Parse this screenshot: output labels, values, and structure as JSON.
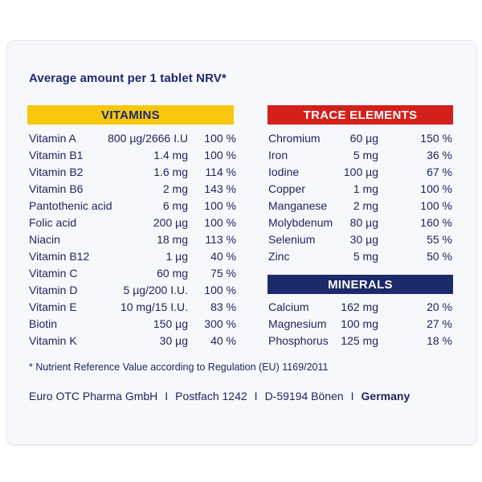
{
  "heading": "Average amount per 1 tablet NRV*",
  "vitamins": {
    "title": "VITAMINS",
    "rows": [
      {
        "name": "Vitamin A",
        "amount": "800 µg/2666 I.U",
        "nrv": "100 %"
      },
      {
        "name": "Vitamin B1",
        "amount": "1.4 mg",
        "nrv": "100 %"
      },
      {
        "name": "Vitamin B2",
        "amount": "1.6 mg",
        "nrv": "114 %"
      },
      {
        "name": "Vitamin B6",
        "amount": "2 mg",
        "nrv": "143 %"
      },
      {
        "name": "Pantothenic acid",
        "amount": "6 mg",
        "nrv": "100 %"
      },
      {
        "name": "Folic acid",
        "amount": "200 µg",
        "nrv": "100 %"
      },
      {
        "name": "Niacin",
        "amount": "18 mg",
        "nrv": "113 %"
      },
      {
        "name": "Vitamin B12",
        "amount": "1 µg",
        "nrv": "40 %"
      },
      {
        "name": "Vitamin C",
        "amount": "60 mg",
        "nrv": "75 %"
      },
      {
        "name": "Vitamin D",
        "amount": "5 µg/200 I.U.",
        "nrv": "100 %"
      },
      {
        "name": "Vitamin E",
        "amount": "10 mg/15 I.U.",
        "nrv": "83 %"
      },
      {
        "name": "Biotin",
        "amount": "150 µg",
        "nrv": "300 %"
      },
      {
        "name": "Vitamin K",
        "amount": "30 µg",
        "nrv": "40 %"
      }
    ]
  },
  "trace_elements": {
    "title": "TRACE ELEMENTS",
    "rows": [
      {
        "name": "Chromium",
        "amount": "60 µg",
        "nrv": "150 %"
      },
      {
        "name": "Iron",
        "amount": "5 mg",
        "nrv": "36 %"
      },
      {
        "name": "Iodine",
        "amount": "100 µg",
        "nrv": "67 %"
      },
      {
        "name": "Copper",
        "amount": "1 mg",
        "nrv": "100 %"
      },
      {
        "name": "Manganese",
        "amount": "2 mg",
        "nrv": "100 %"
      },
      {
        "name": "Molybdenum",
        "amount": "80 µg",
        "nrv": "160 %"
      },
      {
        "name": "Selenium",
        "amount": "30 µg",
        "nrv": "55 %"
      },
      {
        "name": "Zinc",
        "amount": "5 mg",
        "nrv": "50 %"
      }
    ]
  },
  "minerals": {
    "title": "MINERALS",
    "rows": [
      {
        "name": "Calcium",
        "amount": "162 mg",
        "nrv": "20 %"
      },
      {
        "name": "Magnesium",
        "amount": "100 mg",
        "nrv": "27 %"
      },
      {
        "name": "Phosphorus",
        "amount": "125 mg",
        "nrv": "18 %"
      }
    ]
  },
  "footnote": "* Nutrient Reference Value according to Regulation (EU) 1169/2011",
  "address": {
    "company": "Euro OTC Pharma GmbH",
    "separator": "I",
    "postbox": "Postfach 1242",
    "city": "D-59194 Bönen",
    "country": "Germany"
  },
  "colors": {
    "text": "#1e2560",
    "vitamins_band": "#f9c80e",
    "trace_band": "#d41f1a",
    "minerals_band": "#1c2a6b"
  }
}
